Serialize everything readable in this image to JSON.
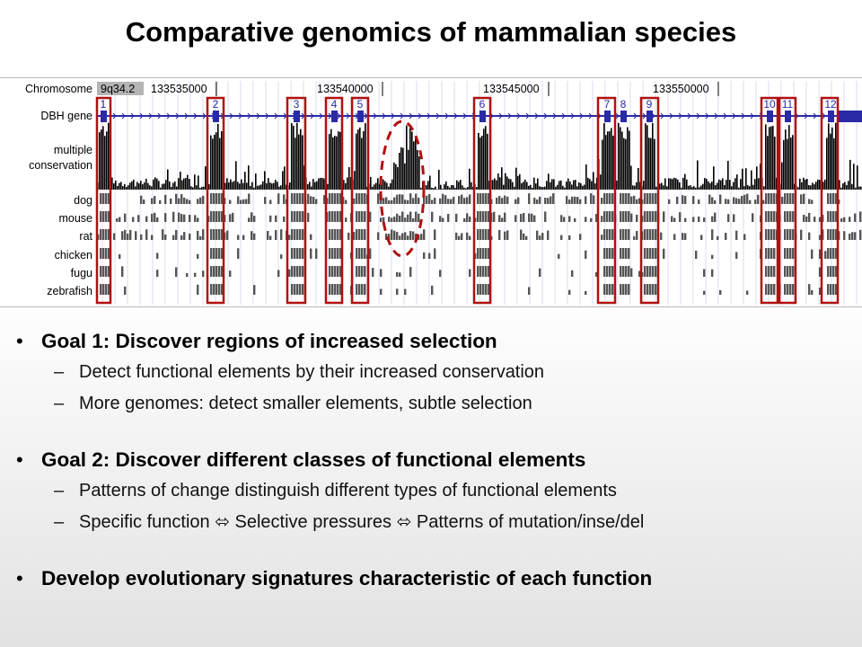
{
  "title": "Comparative genomics of mammalian species",
  "figure": {
    "track_labels": {
      "chromosome": "Chromosome",
      "gene": "DBH gene",
      "conservation": [
        "multiple",
        "conservation"
      ],
      "species": [
        "dog",
        "mouse",
        "rat",
        "chicken",
        "fugu",
        "zebrafish"
      ]
    },
    "band": "9q34.2",
    "coordinates": [
      "133535000",
      "133540000",
      "133545000",
      "133550000"
    ],
    "exon_labels": [
      "1",
      "2",
      "3",
      "4",
      "5",
      "6",
      "7",
      "8",
      "9",
      "10",
      "11",
      "12"
    ],
    "highlight_color": "#b01010",
    "gene_color": "#2a2aa6"
  },
  "bullets": [
    {
      "main": "Goal 1: Discover regions of increased selection",
      "subs": [
        "Detect functional elements by their increased conservation",
        "More genomes:  detect smaller elements, subtle selection"
      ]
    },
    {
      "main": "Goal 2: Discover different classes of functional elements",
      "subs": [
        "Patterns of change distinguish different types of functional elements",
        "Specific function ⬄ Selective pressures ⬄ Patterns of mutation/inse/del"
      ]
    },
    {
      "main": "Develop evolutionary signatures characteristic of each function",
      "subs": []
    }
  ],
  "bullet_symbol": "•",
  "dash_symbol": "–"
}
